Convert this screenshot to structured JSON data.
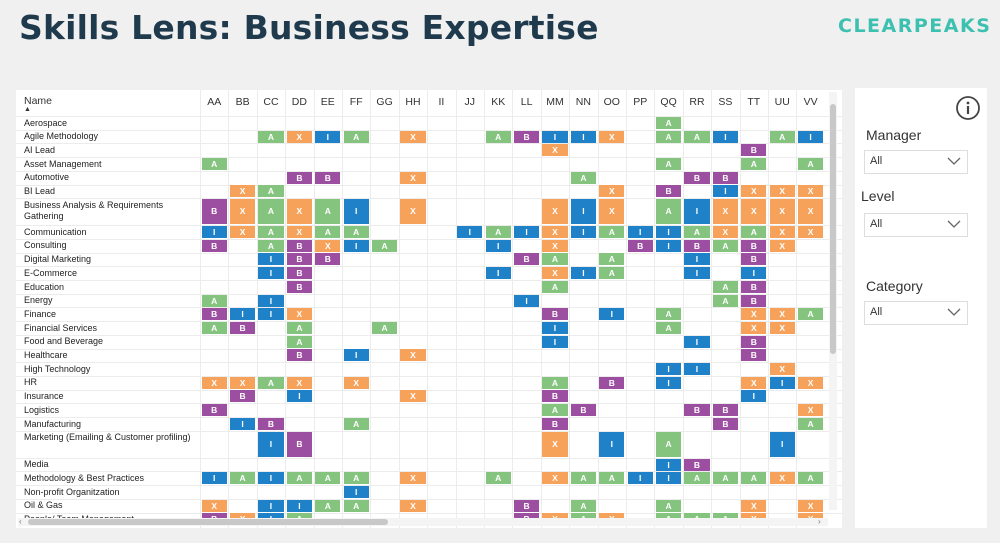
{
  "header": {
    "title": "Skills Lens: Business Expertise",
    "logo": "CLEARPEAKS"
  },
  "colors": {
    "B": "#9c4fa0",
    "X": "#f6a25b",
    "A": "#84c47f",
    "I": "#1f82c8",
    "title": "#1f3a4d",
    "logo": "#3cc0b0"
  },
  "table": {
    "name_header": "Name",
    "sort_indicator": "▲",
    "columns": [
      "AA",
      "BB",
      "CC",
      "DD",
      "EE",
      "FF",
      "GG",
      "HH",
      "II",
      "JJ",
      "KK",
      "LL",
      "MM",
      "NN",
      "OO",
      "PP",
      "QQ",
      "RR",
      "SS",
      "TT",
      "UU",
      "VV"
    ],
    "rows": [
      {
        "label": "Aerospace",
        "cells": {
          "QQ": "A"
        }
      },
      {
        "label": "Agile Methodology",
        "cells": {
          "CC": "A",
          "DD": "X",
          "EE": "I",
          "FF": "A",
          "HH": "X",
          "KK": "A",
          "LL": "B",
          "MM": "I",
          "NN": "I",
          "OO": "X",
          "QQ": "A",
          "RR": "A",
          "SS": "I",
          "UU": "A",
          "VV": "I"
        }
      },
      {
        "label": "AI Lead",
        "cells": {
          "MM": "X",
          "TT": "B"
        }
      },
      {
        "label": "Asset Management",
        "cells": {
          "AA": "A",
          "QQ": "A",
          "TT": "A",
          "VV": "A"
        }
      },
      {
        "label": "Automotive",
        "cells": {
          "DD": "B",
          "EE": "B",
          "HH": "X",
          "NN": "A",
          "RR": "B",
          "SS": "B"
        }
      },
      {
        "label": "BI Lead",
        "cells": {
          "BB": "X",
          "CC": "A",
          "OO": "X",
          "QQ": "B",
          "SS": "I",
          "TT": "X",
          "UU": "X",
          "VV": "X"
        }
      },
      {
        "label": "Business Analysis & Requirements Gathering",
        "tall": true,
        "cells": {
          "AA": "B",
          "BB": "X",
          "CC": "A",
          "DD": "X",
          "EE": "A",
          "FF": "I",
          "HH": "X",
          "MM": "X",
          "NN": "I",
          "OO": "X",
          "QQ": "A",
          "RR": "I",
          "SS": "X",
          "TT": "X",
          "UU": "X",
          "VV": "X"
        }
      },
      {
        "label": "Communication",
        "cells": {
          "AA": "I",
          "BB": "X",
          "CC": "A",
          "DD": "X",
          "EE": "A",
          "FF": "A",
          "JJ": "I",
          "KK": "A",
          "LL": "I",
          "MM": "X",
          "NN": "I",
          "OO": "A",
          "PP": "I",
          "QQ": "I",
          "RR": "A",
          "SS": "X",
          "TT": "A",
          "UU": "X",
          "VV": "X"
        }
      },
      {
        "label": "Consulting",
        "cells": {
          "AA": "B",
          "CC": "A",
          "DD": "B",
          "EE": "X",
          "FF": "I",
          "GG": "A",
          "KK": "I",
          "MM": "X",
          "PP": "B",
          "QQ": "I",
          "RR": "B",
          "SS": "A",
          "TT": "B",
          "UU": "X"
        }
      },
      {
        "label": "Digital Marketing",
        "cells": {
          "CC": "I",
          "DD": "B",
          "EE": "B",
          "LL": "B",
          "MM": "A",
          "OO": "A",
          "RR": "I",
          "TT": "B"
        }
      },
      {
        "label": "E-Commerce",
        "cells": {
          "CC": "I",
          "DD": "B",
          "KK": "I",
          "MM": "X",
          "NN": "I",
          "OO": "A",
          "RR": "I",
          "TT": "I"
        }
      },
      {
        "label": "Education",
        "cells": {
          "DD": "B",
          "MM": "A",
          "SS": "A",
          "TT": "B"
        }
      },
      {
        "label": "Energy",
        "cells": {
          "AA": "A",
          "CC": "I",
          "LL": "I",
          "SS": "A",
          "TT": "B"
        }
      },
      {
        "label": "Finance",
        "cells": {
          "AA": "B",
          "BB": "I",
          "CC": "I",
          "DD": "X",
          "MM": "B",
          "OO": "I",
          "QQ": "A",
          "TT": "X",
          "UU": "X",
          "VV": "A"
        }
      },
      {
        "label": "Financial Services",
        "cells": {
          "AA": "A",
          "BB": "B",
          "DD": "A",
          "GG": "A",
          "MM": "I",
          "QQ": "A",
          "TT": "X",
          "UU": "X"
        }
      },
      {
        "label": "Food and Beverage",
        "cells": {
          "DD": "A",
          "MM": "I",
          "RR": "I",
          "TT": "B"
        }
      },
      {
        "label": "Healthcare",
        "cells": {
          "DD": "B",
          "FF": "I",
          "HH": "X",
          "TT": "B"
        }
      },
      {
        "label": "High Technology",
        "cells": {
          "QQ": "I",
          "RR": "I",
          "UU": "X"
        }
      },
      {
        "label": "HR",
        "cells": {
          "AA": "X",
          "BB": "X",
          "CC": "A",
          "DD": "X",
          "FF": "X",
          "MM": "A",
          "OO": "B",
          "QQ": "I",
          "TT": "X",
          "UU": "I",
          "VV": "X"
        }
      },
      {
        "label": "Insurance",
        "cells": {
          "BB": "B",
          "DD": "I",
          "HH": "X",
          "MM": "B",
          "TT": "I"
        }
      },
      {
        "label": "Logistics",
        "cells": {
          "AA": "B",
          "MM": "A",
          "NN": "B",
          "RR": "B",
          "SS": "B",
          "VV": "X"
        }
      },
      {
        "label": "Manufacturing",
        "cells": {
          "BB": "I",
          "CC": "B",
          "FF": "A",
          "MM": "B",
          "SS": "B",
          "VV": "A"
        }
      },
      {
        "label": "Marketing (Emailing & Customer profiling)",
        "tall": true,
        "cells": {
          "CC": "I",
          "DD": "B",
          "MM": "X",
          "OO": "I",
          "QQ": "A",
          "UU": "I"
        }
      },
      {
        "label": "Media",
        "cells": {
          "QQ": "I",
          "RR": "B"
        }
      },
      {
        "label": "Methodology & Best Practices",
        "cells": {
          "AA": "I",
          "BB": "A",
          "CC": "I",
          "DD": "A",
          "EE": "A",
          "FF": "A",
          "HH": "X",
          "KK": "A",
          "MM": "X",
          "NN": "A",
          "OO": "A",
          "PP": "I",
          "QQ": "I",
          "RR": "A",
          "SS": "A",
          "TT": "A",
          "UU": "X",
          "VV": "A"
        }
      },
      {
        "label": "Non-profit Organitzation",
        "cells": {
          "FF": "I"
        }
      },
      {
        "label": "Oil & Gas",
        "cells": {
          "AA": "X",
          "CC": "I",
          "DD": "I",
          "EE": "A",
          "FF": "A",
          "HH": "X",
          "LL": "B",
          "NN": "A",
          "QQ": "A",
          "TT": "X",
          "VV": "X"
        }
      },
      {
        "label": "People/ Team Management",
        "cells": {
          "AA": "B",
          "BB": "X",
          "CC": "I",
          "DD": "A",
          "LL": "B",
          "MM": "X",
          "NN": "A",
          "OO": "X",
          "QQ": "A",
          "RR": "A",
          "SS": "A",
          "TT": "X",
          "VV": "X"
        }
      }
    ]
  },
  "filters": {
    "info_icon": "info-icon",
    "manager": {
      "label": "Manager",
      "value": "All"
    },
    "level": {
      "label": "Level",
      "value": "All"
    },
    "category": {
      "label": "Category",
      "value": "All"
    }
  }
}
